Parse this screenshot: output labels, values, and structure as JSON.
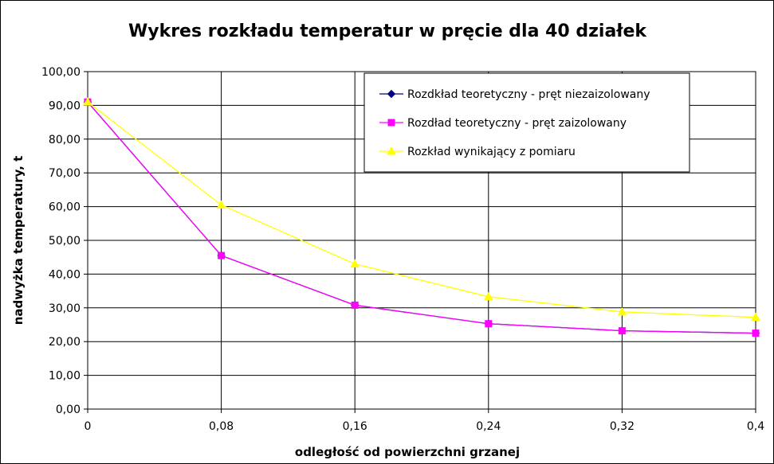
{
  "chart_data": {
    "type": "line",
    "title": "Wykres rozkładu temperatur w pręcie dla 40 działek",
    "xlabel": "odległość od powierzchni grzanej",
    "ylabel": "nadwyżka temperatury, t",
    "categories": [
      "0",
      "0,08",
      "0,16",
      "0,24",
      "0,32",
      "0,4"
    ],
    "y_ticks": [
      "0,00",
      "10,00",
      "20,00",
      "30,00",
      "40,00",
      "50,00",
      "60,00",
      "70,00",
      "80,00",
      "90,00",
      "100,00"
    ],
    "ylim": [
      0,
      100
    ],
    "grid": true,
    "legend_position": "top-right",
    "series": [
      {
        "name": "Rozdkład teoretyczny - pręt niezaizolowany",
        "color": "#000080",
        "marker": "diamond",
        "values": [
          91,
          45.5,
          30.8,
          25.3,
          23.2,
          22.5
        ]
      },
      {
        "name": "Rozdład teoretyczny - pręt zaizolowany",
        "color": "#ff00ff",
        "marker": "square",
        "values": [
          91,
          45.5,
          30.8,
          25.3,
          23.2,
          22.5
        ]
      },
      {
        "name": "Rozkład wynikający z pomiaru",
        "color": "#ffff00",
        "marker": "triangle",
        "values": [
          91,
          60.5,
          43,
          33.3,
          28.8,
          27.2
        ]
      }
    ]
  }
}
